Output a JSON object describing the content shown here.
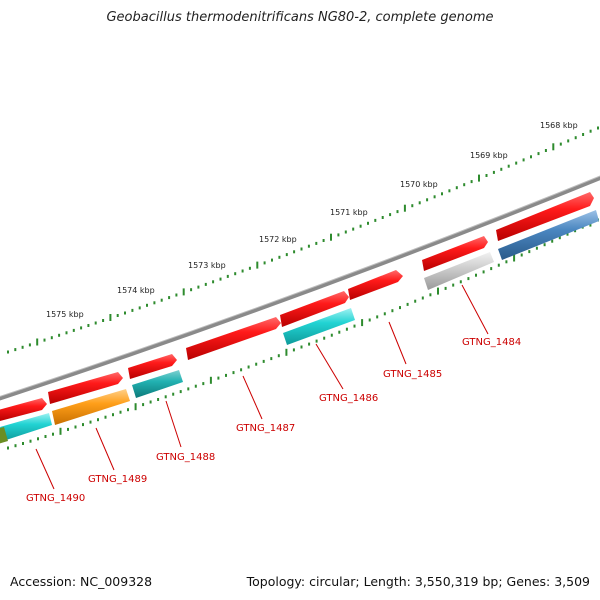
{
  "title": "Geobacillus thermodenitrificans NG80-2, complete genome",
  "footer": {
    "accession": "Accession: NC_009328",
    "summary": "Topology: circular; Length: 3,550,319 bp; Genes: 3,509"
  },
  "colors": {
    "backbone": "#808080",
    "tick": "#2e8b2e",
    "label_line": "#cc0000",
    "label_text": "#cc0000"
  },
  "scale": {
    "unit": "kbp",
    "labels": [
      "1568 kbp",
      "1569 kbp",
      "1570 kbp",
      "1571 kbp",
      "1572 kbp",
      "1573 kbp",
      "1574 kbp",
      "1575 kbp"
    ]
  },
  "genes": [
    {
      "name": "GTNG_1484",
      "color": "#ff0000"
    },
    {
      "name": "GTNG_1485",
      "color": "#ff0000"
    },
    {
      "name": "GTNG_1486",
      "color": "#ff0000"
    },
    {
      "name": "GTNG_1487",
      "color": "#ff0000"
    },
    {
      "name": "GTNG_1488",
      "color": "#ff0000"
    },
    {
      "name": "GTNG_1489",
      "color": "#ff0000"
    },
    {
      "name": "GTNG_1490",
      "color": "#ff0000"
    }
  ]
}
